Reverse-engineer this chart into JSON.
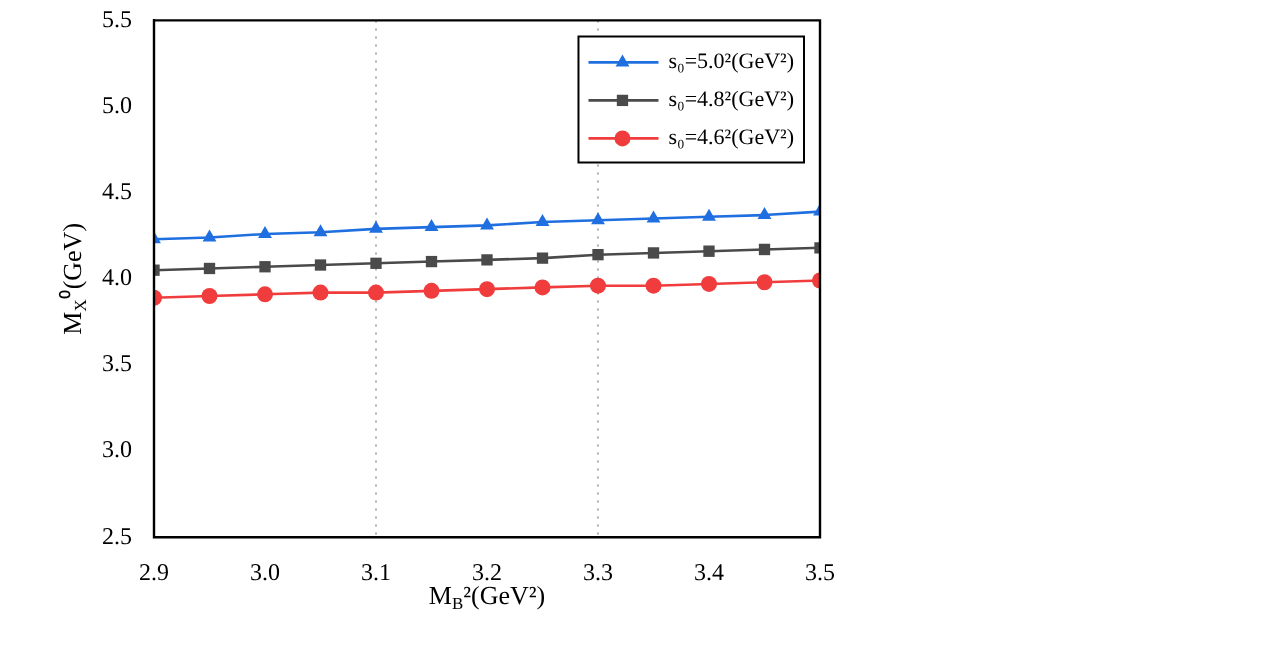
{
  "chart_data": {
    "type": "line",
    "xlabel": "M$_{B}$²(GeV²)",
    "ylabel": "M$_{X}$⁰(GeV)",
    "x": [
      2.9,
      2.95,
      3.0,
      3.05,
      3.1,
      3.15,
      3.2,
      3.25,
      3.3,
      3.35,
      3.4,
      3.45,
      3.5
    ],
    "series": [
      {
        "name": "s₀=5.0²(GeV²)",
        "color": "#1f6fe0",
        "marker": "triangle",
        "values": [
          4.23,
          4.24,
          4.26,
          4.27,
          4.29,
          4.3,
          4.31,
          4.33,
          4.34,
          4.35,
          4.36,
          4.37,
          4.39
        ]
      },
      {
        "name": "s₀=4.8²(GeV²)",
        "color": "#4a4a4a",
        "marker": "square",
        "values": [
          4.05,
          4.06,
          4.07,
          4.08,
          4.09,
          4.1,
          4.11,
          4.12,
          4.14,
          4.15,
          4.16,
          4.17,
          4.18
        ]
      },
      {
        "name": "s₀=4.6²(GeV²)",
        "color": "#f03c3c",
        "marker": "circle",
        "values": [
          3.89,
          3.9,
          3.91,
          3.92,
          3.92,
          3.93,
          3.94,
          3.95,
          3.96,
          3.96,
          3.97,
          3.98,
          3.99
        ]
      }
    ],
    "xlim": [
      2.9,
      3.5
    ],
    "xticks": [
      2.9,
      {
        "value": 3,
        "label": "3.0"
      },
      3.1,
      3.2,
      3.3,
      3.4,
      {
        "value": 3.5,
        "label": "3.5"
      }
    ],
    "ylim": [
      2.5,
      5.5
    ],
    "yticks": [
      2.5,
      {
        "value": 3,
        "label": "3.0"
      },
      3.5,
      {
        "value": 4,
        "label": "4.0"
      },
      4.5,
      {
        "value": 5,
        "label": "5.0"
      },
      5.5
    ],
    "ref_lines": [
      {
        "axis": "x",
        "value": 3.1,
        "color": "#b0b0b0",
        "line_style": "dotted"
      },
      {
        "axis": "x",
        "value": 3.3,
        "color": "#b0b0b0",
        "line_style": "dotted"
      }
    ],
    "grid": false,
    "legend": "top right",
    "line_style": "solid"
  }
}
